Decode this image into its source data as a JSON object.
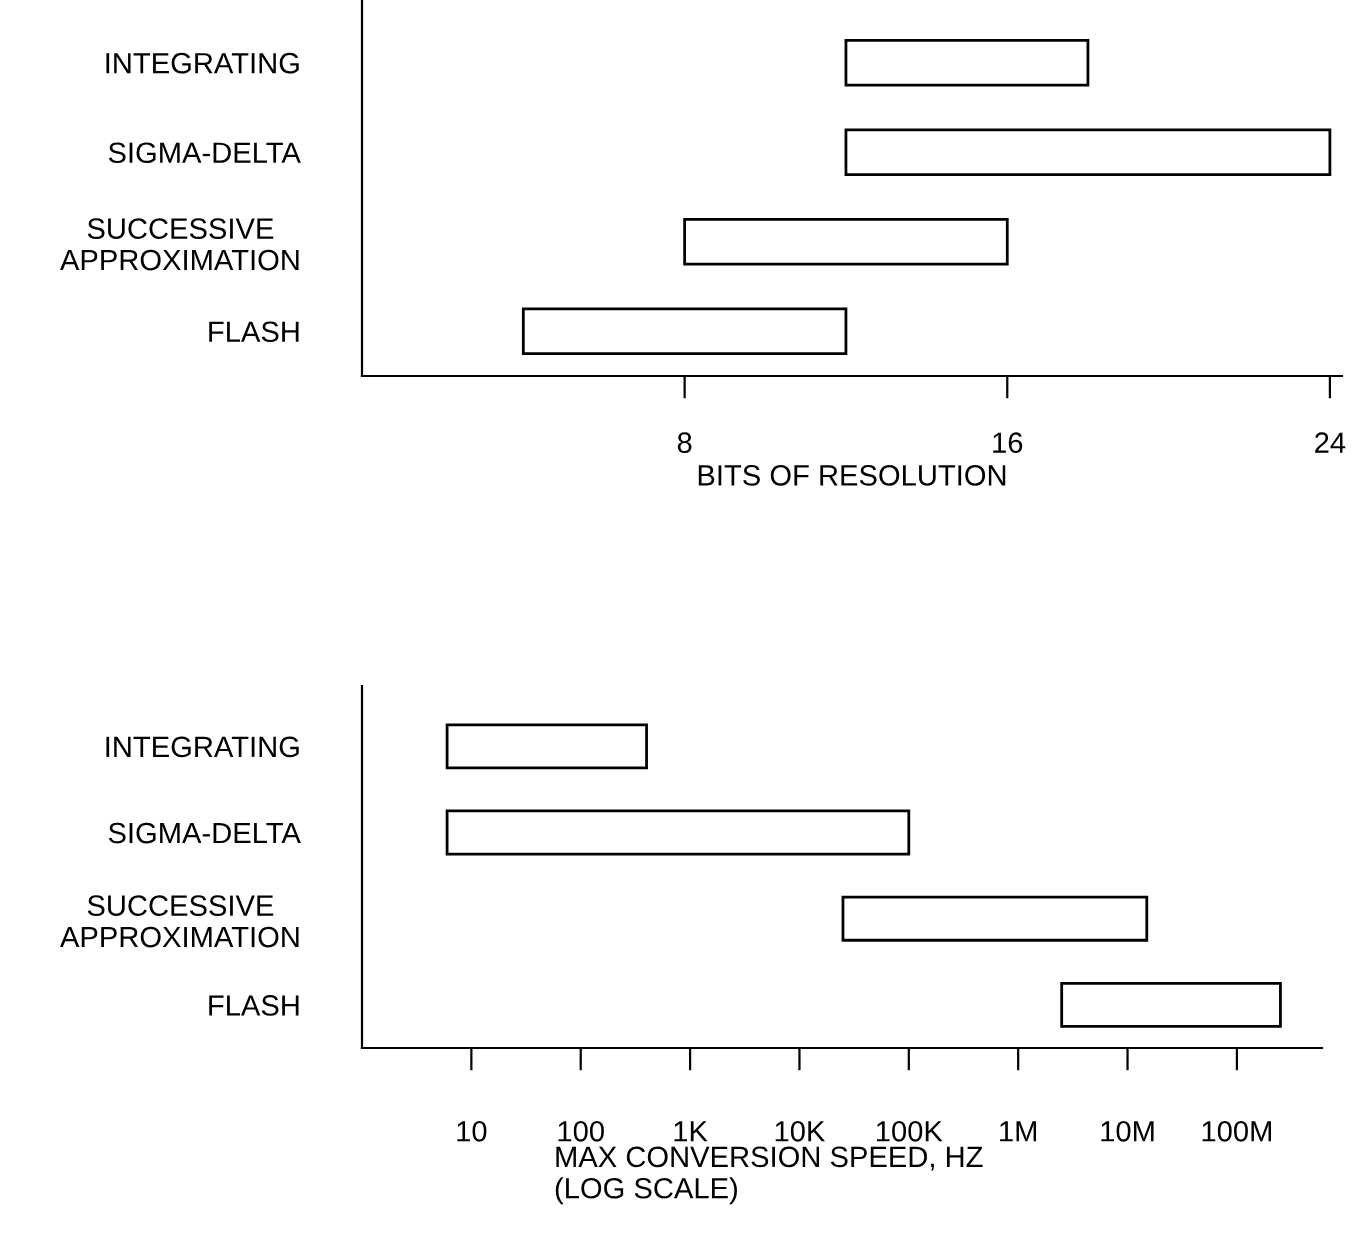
{
  "chart_data": [
    {
      "type": "bar",
      "orientation": "horizontal",
      "categories": [
        "INTEGRATING",
        "SIGMA-DELTA",
        "SUCCESSIVE\nAPPROXIMATION",
        "FLASH"
      ],
      "base": [
        12,
        12,
        8,
        4
      ],
      "values": [
        6,
        12,
        8,
        8
      ],
      "color": "#ffffff",
      "xlabel": "BITS OF RESOLUTION",
      "xlim": [
        0,
        24.3
      ],
      "xticks": [
        8,
        16,
        24
      ],
      "grid": false
    },
    {
      "type": "bar",
      "orientation": "horizontal",
      "categories": [
        "INTEGRATING",
        "SIGMA-DELTA",
        "SUCCESSIVE\nAPPROXIMATION",
        "FLASH"
      ],
      "base": [
        6,
        6,
        25000,
        2500000
      ],
      "values": [
        394,
        99994,
        14975000,
        247500000
      ],
      "color": "#ffffff",
      "log": "x",
      "xlabel": "MAX CONVERSION SPEED, HZ\n(LOG SCALE)",
      "xlim": [
        1,
        600000000
      ],
      "xticks": [
        {
          "value": 10,
          "label": "10"
        },
        {
          "value": 100,
          "label": "100"
        },
        {
          "value": 1000,
          "label": "1K"
        },
        {
          "value": 10000,
          "label": "10K"
        },
        {
          "value": 100000,
          "label": "100K"
        },
        {
          "value": 1000000,
          "label": "1M"
        },
        {
          "value": 10000000,
          "label": "10M"
        },
        {
          "value": 100000000,
          "label": "100M"
        }
      ],
      "grid": false
    }
  ]
}
